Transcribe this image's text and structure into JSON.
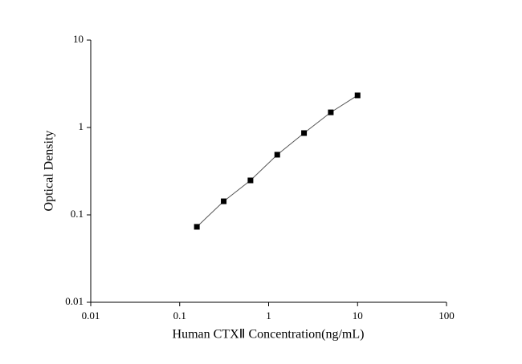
{
  "chart_data": {
    "type": "scatter",
    "x_label": "Human CTXⅡ Concentration(ng/mL)",
    "y_label": "Optical Density",
    "x": [
      0.156,
      0.3125,
      0.625,
      1.25,
      2.5,
      5,
      10
    ],
    "series": [
      {
        "values": [
          0.073,
          0.143,
          0.248,
          0.488,
          0.863,
          1.49,
          2.33
        ],
        "color": "#000000"
      }
    ],
    "connect_points": true,
    "xscale": "log",
    "yscale": "log",
    "xlim": [
      0.01,
      100
    ],
    "ylim": [
      0.01,
      10
    ],
    "xticks": [
      0.01,
      0.1,
      1,
      10,
      100
    ],
    "yticks": [
      0.01,
      0.1,
      1,
      10
    ]
  }
}
